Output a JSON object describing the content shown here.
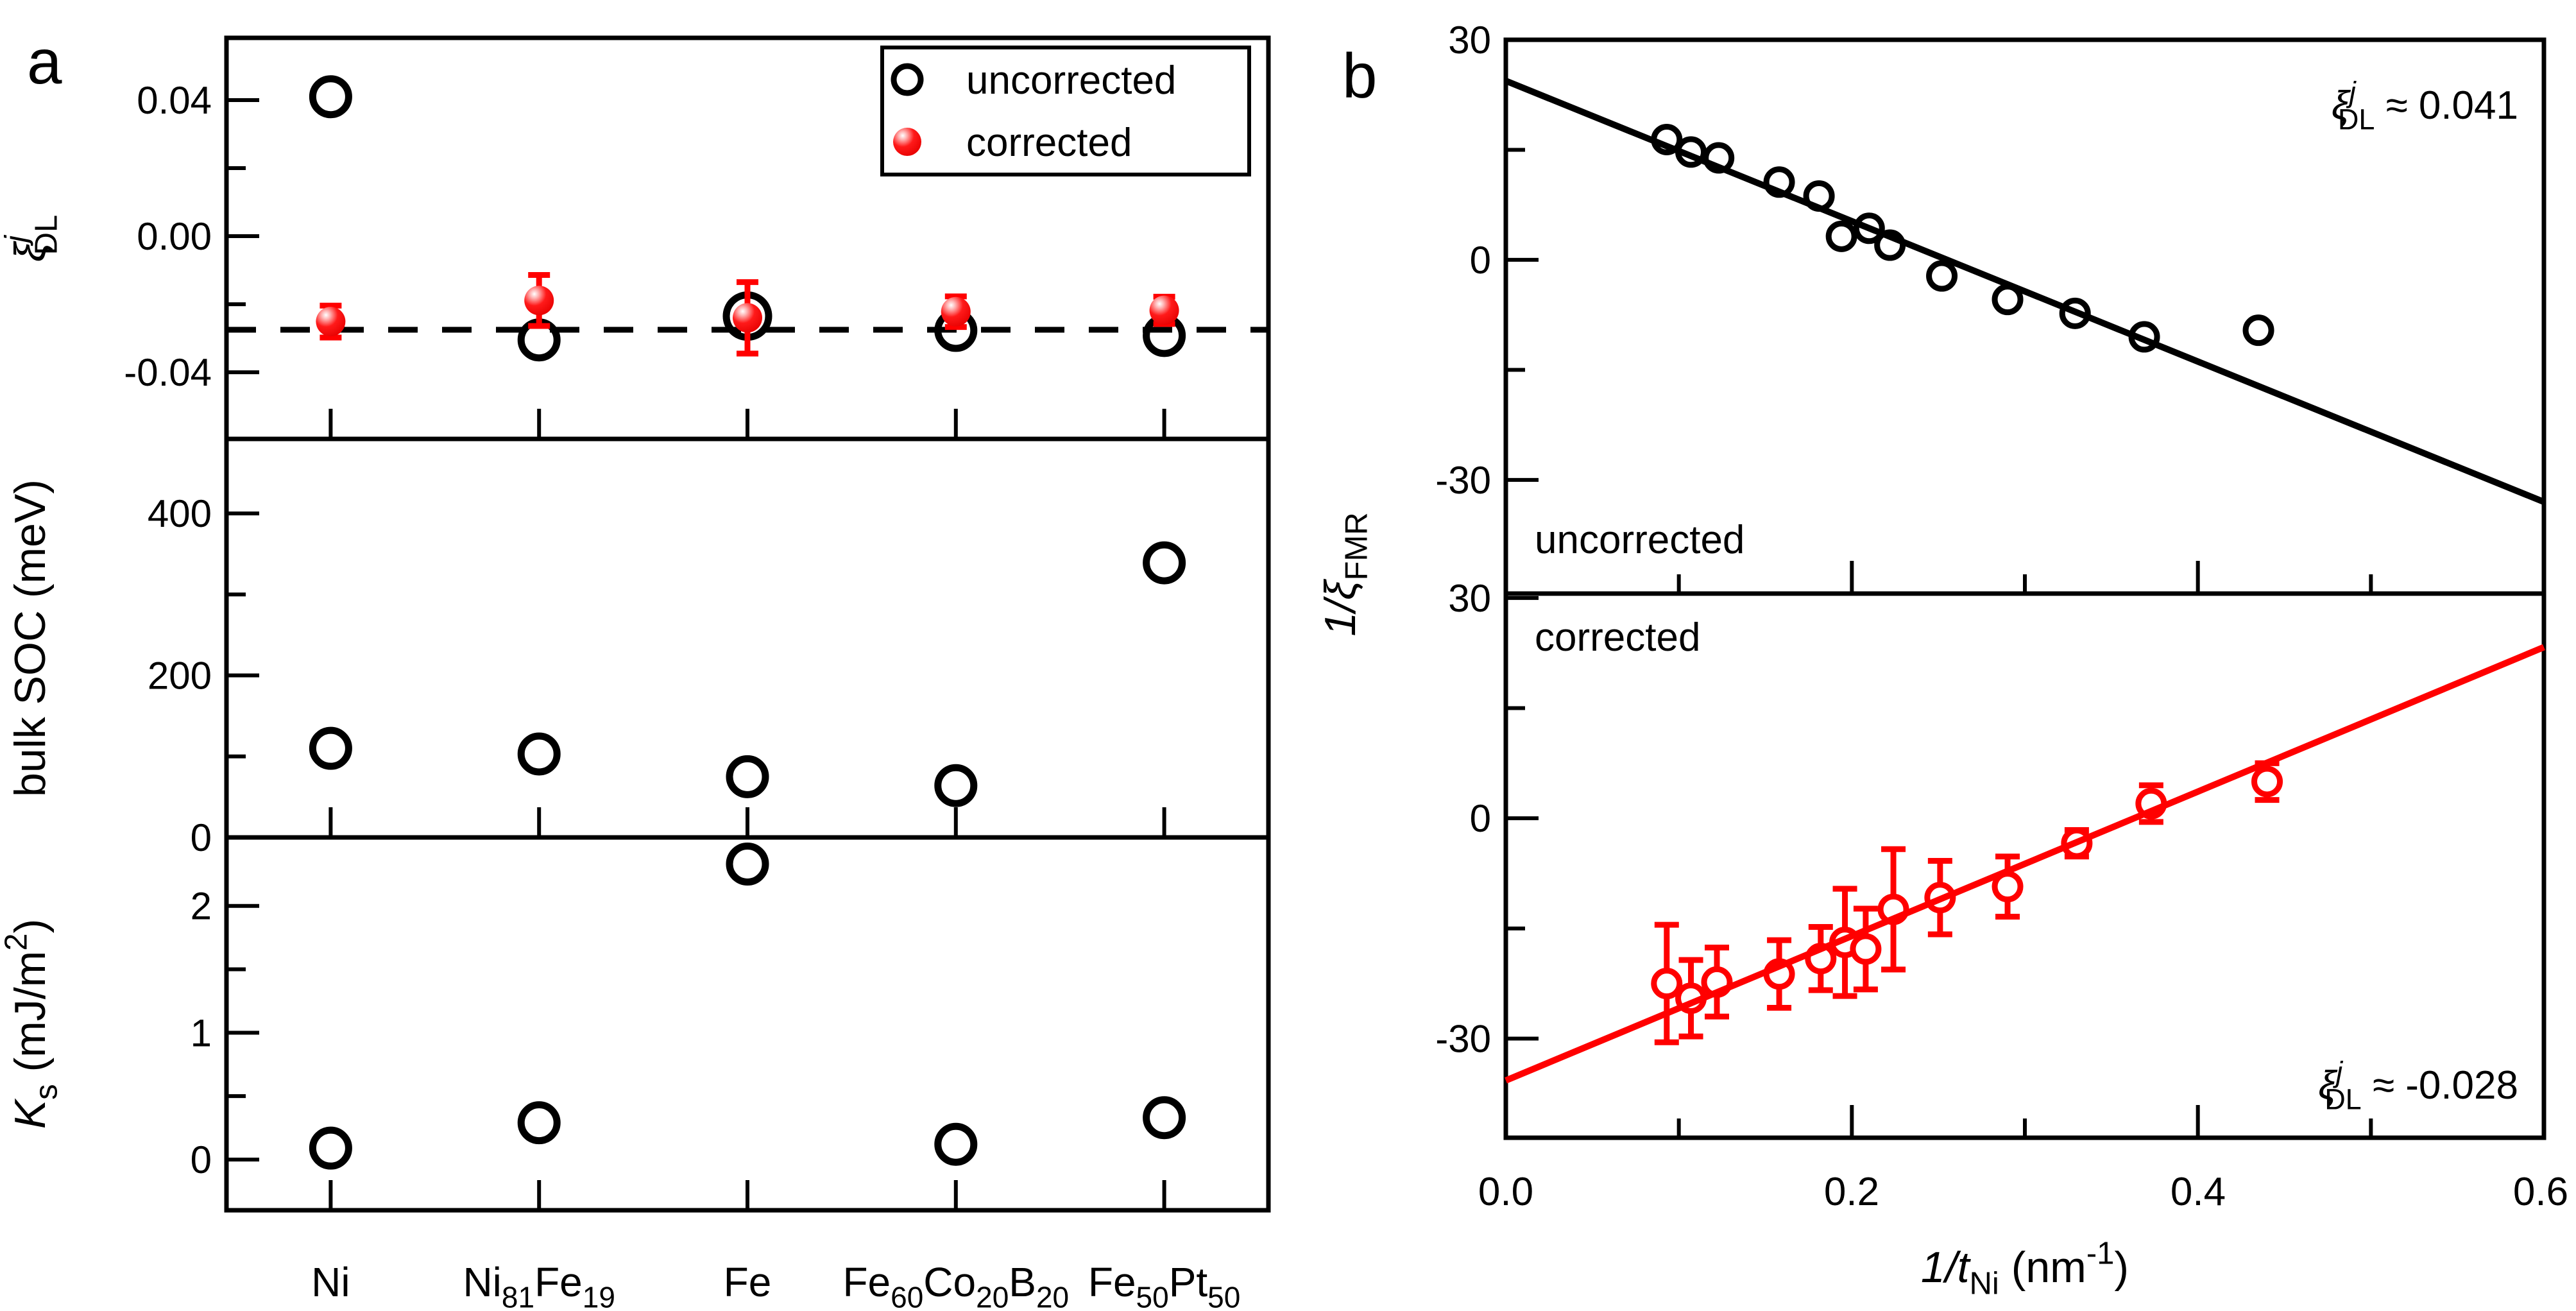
{
  "figure": {
    "panel_labels": {
      "a": "a",
      "b": "b"
    },
    "background": "#ffffff"
  },
  "colors": {
    "black": "#000000",
    "red": "#ff0000",
    "background": "#ffffff"
  },
  "legend": {
    "items": [
      {
        "label": "uncorrected",
        "marker": "open-circle-icon"
      },
      {
        "label": "corrected",
        "marker": "red-ball-icon"
      }
    ]
  },
  "chart_data": [
    {
      "id": "a_xi",
      "type": "scatter",
      "panel": "a",
      "ylabel_rich": [
        {
          "t": "ξ",
          "i": true
        },
        {
          "stack": {
            "p": "j",
            "s": "DL"
          }
        }
      ],
      "yticks": [
        {
          "v": 0.04,
          "label": "0.04"
        },
        {
          "v": 0.0,
          "label": "0.00"
        },
        {
          "v": -0.04,
          "label": "-0.04"
        }
      ],
      "yminor": [
        0.02,
        -0.02
      ],
      "ylim": [
        -0.0596,
        0.0583
      ],
      "categories": [
        "Ni",
        "Ni81Fe19",
        "Fe",
        "Fe60Co20B20",
        "Fe50Pt50"
      ],
      "series": [
        {
          "name": "uncorrected",
          "values": [
            0.041,
            -0.0305,
            -0.0235,
            -0.0277,
            -0.0292
          ],
          "marker_r": [
            28,
            28,
            33,
            28,
            28
          ]
        },
        {
          "name": "corrected",
          "values": [
            -0.0251,
            -0.0189,
            -0.024,
            -0.0222,
            -0.0218
          ],
          "errors": [
            0.0047,
            0.0075,
            0.0105,
            0.0045,
            0.004
          ]
        }
      ],
      "dashed_line_y": -0.0275
    },
    {
      "id": "a_soc",
      "type": "scatter",
      "panel": "a",
      "ylabel": "bulk SOC (meV)",
      "yticks": [
        {
          "v": 0,
          "label": "0"
        },
        {
          "v": 200,
          "label": "200"
        },
        {
          "v": 400,
          "label": "400"
        }
      ],
      "yminor": [
        100,
        300
      ],
      "ylim": [
        0,
        492
      ],
      "values": [
        110,
        103,
        75,
        64,
        339
      ]
    },
    {
      "id": "a_ks",
      "type": "scatter",
      "panel": "a",
      "ylabel_rich": [
        {
          "t": "K",
          "i": true
        },
        {
          "s": "s"
        },
        {
          "t": " (mJ/m"
        },
        {
          "p": "2"
        },
        {
          "t": ")"
        }
      ],
      "yticks": [
        {
          "v": 0,
          "label": "0"
        },
        {
          "v": 1,
          "label": "1"
        },
        {
          "v": 2,
          "label": "2"
        }
      ],
      "yminor": [
        0.5,
        1.5
      ],
      "ylim": [
        -0.4,
        2.54
      ],
      "values": [
        0.09,
        0.29,
        2.33,
        0.12,
        0.33
      ]
    },
    {
      "id": "b",
      "type": "scatter",
      "panel": "b",
      "xlabel_rich": [
        {
          "t": "1/",
          "i": true
        },
        {
          "t": "t",
          "i": true
        },
        {
          "s": "Ni"
        },
        {
          "t": " (nm"
        },
        {
          "p": "-1"
        },
        {
          "t": ")"
        }
      ],
      "ylabel_rich": [
        {
          "t": "1/",
          "i": true
        },
        {
          "t": "ξ",
          "i": true
        },
        {
          "s": "FMR"
        }
      ],
      "xlim": [
        0,
        0.6
      ],
      "xticks": [
        {
          "v": 0.0,
          "label": "0.0"
        },
        {
          "v": 0.2,
          "label": "0.2"
        },
        {
          "v": 0.4,
          "label": "0.4"
        },
        {
          "v": 0.6,
          "label": "0.6"
        }
      ],
      "xminor": [
        0.1,
        0.3,
        0.5
      ],
      "subplots": [
        {
          "name": "uncorrected",
          "label": "uncorrected",
          "color": "#000000",
          "ylim": [
            -45.5,
            30
          ],
          "yticks": [
            {
              "v": 30,
              "label": "30"
            },
            {
              "v": 0,
              "label": "0"
            },
            {
              "v": -30,
              "label": "-30"
            }
          ],
          "yminor": [
            15,
            -15
          ],
          "x": [
            0.093,
            0.107,
            0.123,
            0.158,
            0.181,
            0.194,
            0.21,
            0.222,
            0.252,
            0.29,
            0.329,
            0.369,
            0.435
          ],
          "y": [
            16.4,
            14.7,
            13.9,
            10.6,
            8.7,
            3.2,
            4.3,
            2.0,
            -2.2,
            -5.4,
            -7.3,
            -10.5,
            -9.6
          ],
          "fit_line": {
            "x0": 0,
            "y0": 24.4,
            "x1": 0.6,
            "y1": -33.0
          },
          "annotation_rich": [
            {
              "t": "ξ",
              "i": true
            },
            {
              "stack": {
                "p": "j",
                "s": "DL"
              }
            },
            {
              "t": " ≈ 0.041"
            }
          ],
          "annotation_value": "0.041"
        },
        {
          "name": "corrected",
          "label": "corrected",
          "color": "#ff0000",
          "ylim": [
            -43.5,
            30.6
          ],
          "yticks": [
            {
              "v": 30,
              "label": "30"
            },
            {
              "v": 0,
              "label": "0"
            },
            {
              "v": -30,
              "label": "-30"
            }
          ],
          "yminor": [
            15,
            -15
          ],
          "x": [
            0.093,
            0.107,
            0.122,
            0.158,
            0.182,
            0.196,
            0.208,
            0.224,
            0.251,
            0.29,
            0.33,
            0.373,
            0.44
          ],
          "y": [
            -22.5,
            -24.5,
            -22.3,
            -21.2,
            -19.1,
            -16.9,
            -17.8,
            -12.4,
            -10.8,
            -9.3,
            -3.4,
            2.0,
            5.0
          ],
          "err": [
            8.0,
            5.2,
            4.7,
            4.6,
            4.3,
            7.3,
            5.5,
            8.2,
            5.0,
            4.1,
            1.8,
            2.5,
            2.5
          ],
          "fit_line": {
            "x0": 0,
            "y0": -35.7,
            "x1": 0.6,
            "y1": 23.3
          },
          "annotation_rich": [
            {
              "t": "ξ",
              "i": true
            },
            {
              "stack": {
                "p": "j",
                "s": "DL"
              }
            },
            {
              "t": " ≈ -0.028"
            }
          ],
          "annotation_value": "-0.028"
        }
      ]
    }
  ]
}
